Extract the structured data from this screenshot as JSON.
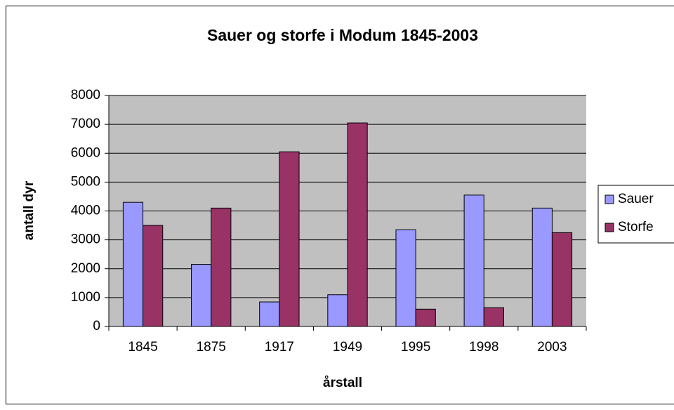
{
  "chart_data": {
    "type": "bar",
    "title": "Sauer og storfe i Modum 1845-2003",
    "x_label": "årstall",
    "y_label": "antall dyr",
    "categories": [
      "1845",
      "1875",
      "1917",
      "1949",
      "1995",
      "1998",
      "2003"
    ],
    "series": [
      {
        "name": "Sauer",
        "color": "#9999ff",
        "values": [
          4300,
          2150,
          850,
          1100,
          3350,
          4550,
          4100
        ]
      },
      {
        "name": "Storfe",
        "color": "#993366",
        "values": [
          3500,
          4100,
          6050,
          7050,
          600,
          650,
          3250
        ]
      }
    ],
    "ylim": [
      0,
      8000
    ],
    "yticks": [
      0,
      1000,
      2000,
      3000,
      4000,
      5000,
      6000,
      7000,
      8000
    ],
    "grid": true,
    "plot_background": "#c0c0c0",
    "legend": "right"
  }
}
